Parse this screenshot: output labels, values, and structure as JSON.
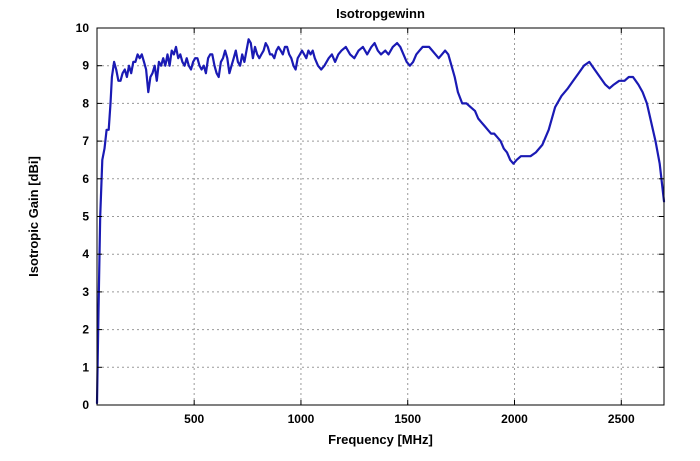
{
  "chart_data": {
    "type": "line",
    "title": "Isotropgewinn",
    "xlabel": "Frequency [MHz]",
    "ylabel": "Isotropic Gain [dBi]",
    "xlim": [
      45,
      2700
    ],
    "ylim": [
      0,
      10
    ],
    "xticks": [
      500,
      1000,
      1500,
      2000,
      2500
    ],
    "yticks": [
      0,
      1,
      2,
      3,
      4,
      5,
      6,
      7,
      8,
      9,
      10
    ],
    "grid": true,
    "legend": "none",
    "colors": {
      "series": "#1a1ab4",
      "grid": "#9a9a9a",
      "frame": "#000000"
    },
    "series": [
      {
        "values": [
          [
            45,
            0.05
          ],
          [
            52,
            2.5
          ],
          [
            60,
            5.0
          ],
          [
            70,
            6.5
          ],
          [
            80,
            6.8
          ],
          [
            90,
            7.3
          ],
          [
            100,
            7.3
          ],
          [
            108,
            8.0
          ],
          [
            115,
            8.7
          ],
          [
            125,
            9.1
          ],
          [
            135,
            8.9
          ],
          [
            145,
            8.6
          ],
          [
            155,
            8.6
          ],
          [
            165,
            8.8
          ],
          [
            175,
            8.9
          ],
          [
            185,
            8.7
          ],
          [
            195,
            9.0
          ],
          [
            205,
            8.8
          ],
          [
            215,
            9.1
          ],
          [
            225,
            9.1
          ],
          [
            235,
            9.3
          ],
          [
            245,
            9.2
          ],
          [
            255,
            9.3
          ],
          [
            265,
            9.1
          ],
          [
            275,
            8.9
          ],
          [
            285,
            8.3
          ],
          [
            295,
            8.7
          ],
          [
            305,
            8.8
          ],
          [
            315,
            9.0
          ],
          [
            325,
            8.6
          ],
          [
            335,
            9.1
          ],
          [
            345,
            9.0
          ],
          [
            355,
            9.2
          ],
          [
            365,
            9.0
          ],
          [
            375,
            9.3
          ],
          [
            385,
            9.0
          ],
          [
            395,
            9.4
          ],
          [
            405,
            9.3
          ],
          [
            415,
            9.5
          ],
          [
            425,
            9.2
          ],
          [
            435,
            9.3
          ],
          [
            445,
            9.1
          ],
          [
            455,
            9.0
          ],
          [
            465,
            9.2
          ],
          [
            475,
            9.0
          ],
          [
            485,
            8.9
          ],
          [
            495,
            9.1
          ],
          [
            505,
            9.2
          ],
          [
            515,
            9.2
          ],
          [
            525,
            9.0
          ],
          [
            535,
            8.9
          ],
          [
            545,
            9.0
          ],
          [
            555,
            8.8
          ],
          [
            565,
            9.2
          ],
          [
            575,
            9.3
          ],
          [
            585,
            9.3
          ],
          [
            595,
            9.0
          ],
          [
            605,
            8.8
          ],
          [
            615,
            8.7
          ],
          [
            625,
            9.1
          ],
          [
            635,
            9.2
          ],
          [
            645,
            9.4
          ],
          [
            655,
            9.2
          ],
          [
            665,
            8.8
          ],
          [
            675,
            9.0
          ],
          [
            685,
            9.2
          ],
          [
            695,
            9.4
          ],
          [
            705,
            9.1
          ],
          [
            715,
            9.0
          ],
          [
            725,
            9.3
          ],
          [
            735,
            9.1
          ],
          [
            745,
            9.4
          ],
          [
            755,
            9.7
          ],
          [
            765,
            9.6
          ],
          [
            775,
            9.2
          ],
          [
            785,
            9.5
          ],
          [
            795,
            9.3
          ],
          [
            805,
            9.2
          ],
          [
            815,
            9.3
          ],
          [
            825,
            9.4
          ],
          [
            835,
            9.6
          ],
          [
            845,
            9.5
          ],
          [
            855,
            9.3
          ],
          [
            865,
            9.3
          ],
          [
            875,
            9.2
          ],
          [
            885,
            9.4
          ],
          [
            895,
            9.5
          ],
          [
            905,
            9.4
          ],
          [
            915,
            9.3
          ],
          [
            925,
            9.5
          ],
          [
            935,
            9.5
          ],
          [
            945,
            9.3
          ],
          [
            955,
            9.2
          ],
          [
            965,
            9.0
          ],
          [
            975,
            8.9
          ],
          [
            985,
            9.2
          ],
          [
            995,
            9.3
          ],
          [
            1005,
            9.4
          ],
          [
            1015,
            9.3
          ],
          [
            1025,
            9.2
          ],
          [
            1035,
            9.4
          ],
          [
            1045,
            9.3
          ],
          [
            1055,
            9.4
          ],
          [
            1065,
            9.2
          ],
          [
            1080,
            9.0
          ],
          [
            1095,
            8.9
          ],
          [
            1110,
            9.0
          ],
          [
            1130,
            9.2
          ],
          [
            1145,
            9.3
          ],
          [
            1160,
            9.1
          ],
          [
            1175,
            9.3
          ],
          [
            1190,
            9.4
          ],
          [
            1210,
            9.5
          ],
          [
            1230,
            9.3
          ],
          [
            1250,
            9.2
          ],
          [
            1270,
            9.4
          ],
          [
            1290,
            9.5
          ],
          [
            1310,
            9.3
          ],
          [
            1330,
            9.5
          ],
          [
            1345,
            9.6
          ],
          [
            1360,
            9.4
          ],
          [
            1375,
            9.3
          ],
          [
            1395,
            9.4
          ],
          [
            1410,
            9.3
          ],
          [
            1430,
            9.5
          ],
          [
            1450,
            9.6
          ],
          [
            1465,
            9.5
          ],
          [
            1480,
            9.3
          ],
          [
            1495,
            9.1
          ],
          [
            1510,
            9.0
          ],
          [
            1525,
            9.1
          ],
          [
            1540,
            9.3
          ],
          [
            1555,
            9.4
          ],
          [
            1570,
            9.5
          ],
          [
            1585,
            9.5
          ],
          [
            1600,
            9.5
          ],
          [
            1615,
            9.4
          ],
          [
            1630,
            9.3
          ],
          [
            1645,
            9.2
          ],
          [
            1660,
            9.3
          ],
          [
            1675,
            9.4
          ],
          [
            1690,
            9.3
          ],
          [
            1705,
            9.0
          ],
          [
            1720,
            8.7
          ],
          [
            1735,
            8.3
          ],
          [
            1755,
            8.0
          ],
          [
            1775,
            8.0
          ],
          [
            1795,
            7.9
          ],
          [
            1815,
            7.8
          ],
          [
            1830,
            7.6
          ],
          [
            1845,
            7.5
          ],
          [
            1860,
            7.4
          ],
          [
            1875,
            7.3
          ],
          [
            1890,
            7.2
          ],
          [
            1905,
            7.2
          ],
          [
            1920,
            7.1
          ],
          [
            1935,
            7.0
          ],
          [
            1950,
            6.8
          ],
          [
            1965,
            6.7
          ],
          [
            1980,
            6.5
          ],
          [
            1995,
            6.4
          ],
          [
            2010,
            6.5
          ],
          [
            2030,
            6.6
          ],
          [
            2050,
            6.6
          ],
          [
            2075,
            6.6
          ],
          [
            2100,
            6.7
          ],
          [
            2130,
            6.9
          ],
          [
            2160,
            7.3
          ],
          [
            2190,
            7.9
          ],
          [
            2220,
            8.2
          ],
          [
            2250,
            8.4
          ],
          [
            2275,
            8.6
          ],
          [
            2300,
            8.8
          ],
          [
            2325,
            9.0
          ],
          [
            2350,
            9.1
          ],
          [
            2375,
            8.9
          ],
          [
            2400,
            8.7
          ],
          [
            2425,
            8.5
          ],
          [
            2445,
            8.4
          ],
          [
            2465,
            8.5
          ],
          [
            2490,
            8.6
          ],
          [
            2515,
            8.6
          ],
          [
            2535,
            8.7
          ],
          [
            2555,
            8.7
          ],
          [
            2580,
            8.5
          ],
          [
            2600,
            8.3
          ],
          [
            2620,
            8.0
          ],
          [
            2640,
            7.5
          ],
          [
            2660,
            7.0
          ],
          [
            2680,
            6.4
          ],
          [
            2700,
            5.4
          ]
        ]
      }
    ]
  }
}
